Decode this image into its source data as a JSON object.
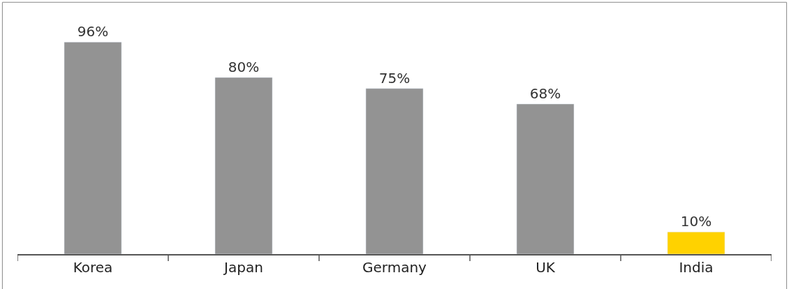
{
  "chart_data": {
    "type": "bar",
    "categories": [
      "Korea",
      "Japan",
      "Germany",
      "UK",
      "India"
    ],
    "values": [
      96,
      80,
      75,
      68,
      10
    ],
    "colors": [
      "#939393",
      "#939393",
      "#939393",
      "#939393",
      "#ffd200"
    ],
    "value_labels": [
      "96%",
      "80%",
      "75%",
      "68%",
      "10%"
    ],
    "legend": false
  }
}
